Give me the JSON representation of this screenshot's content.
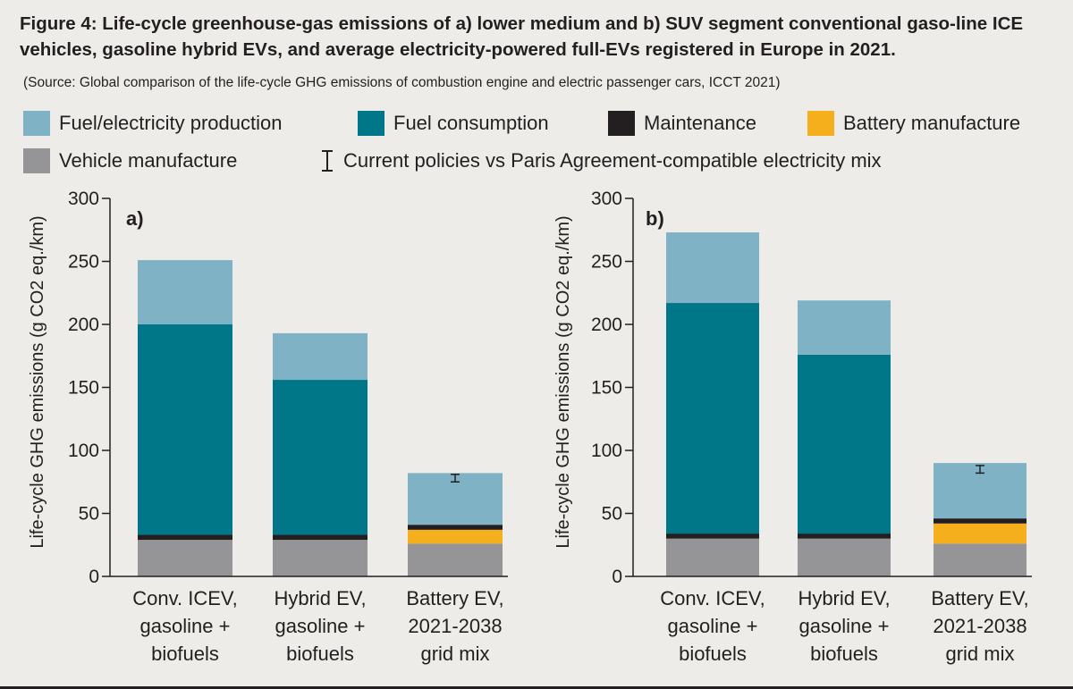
{
  "title": "Figure 4: Life-cycle greenhouse-gas emissions of a) lower medium and b) SUV segment conventional gaso-line ICE vehicles, gasoline hybrid EVs, and average electricity-powered full-EVs registered in Europe in 2021.",
  "source": "(Source: Global comparison of the life-cycle GHG emissions of combustion engine and electric passenger cars, ICCT 2021)",
  "legend": {
    "fuel_production": "Fuel/electricity production",
    "fuel_consumption": "Fuel consumption",
    "maintenance": "Maintenance",
    "battery": "Battery manufacture",
    "vehicle": "Vehicle manufacture",
    "error_bar": "Current policies vs Paris Agreement-compatible electricity mix"
  },
  "colors": {
    "fuel_production": "#7fb2c5",
    "fuel_consumption": "#007689",
    "maintenance": "#231f20",
    "battery": "#f5ae1c",
    "vehicle": "#959597",
    "background": "#eeece8"
  },
  "chart_data": [
    {
      "type": "bar",
      "stacked": true,
      "panel_label": "a)",
      "ylabel": "Life-cycle GHG emissions (g CO2 eq./km)",
      "ylim": [
        0,
        300
      ],
      "yticks": [
        "0",
        "50",
        "100",
        "150",
        "200",
        "250",
        "300"
      ],
      "categories": [
        [
          "Conv. ICEV,",
          "gasoline +",
          "biofuels"
        ],
        [
          "Hybrid EV,",
          "gasoline +",
          "biofuels"
        ],
        [
          "Battery EV,",
          "2021-2038",
          "grid mix"
        ]
      ],
      "series": [
        {
          "name": "Vehicle manufacture",
          "key": "vehicle",
          "values": [
            29,
            29,
            26
          ]
        },
        {
          "name": "Battery manufacture",
          "key": "battery",
          "values": [
            0,
            0,
            11
          ]
        },
        {
          "name": "Maintenance",
          "key": "maintenance",
          "values": [
            4,
            4,
            4
          ]
        },
        {
          "name": "Fuel consumption",
          "key": "fuel_consumption",
          "values": [
            167,
            123,
            0
          ]
        },
        {
          "name": "Fuel/electricity production",
          "key": "fuel_production",
          "values": [
            51,
            37,
            41
          ]
        }
      ],
      "error_bars": [
        null,
        null,
        {
          "center": 78,
          "low": 75,
          "high": 81
        }
      ]
    },
    {
      "type": "bar",
      "stacked": true,
      "panel_label": "b)",
      "ylabel": "Life-cycle GHG emissions (g CO2 eq./km)",
      "ylim": [
        0,
        300
      ],
      "yticks": [
        "0",
        "50",
        "100",
        "150",
        "200",
        "250",
        "300"
      ],
      "categories": [
        [
          "Conv. ICEV,",
          "gasoline +",
          "biofuels"
        ],
        [
          "Hybrid EV,",
          "gasoline +",
          "biofuels"
        ],
        [
          "Battery EV,",
          "2021-2038",
          "grid mix"
        ]
      ],
      "series": [
        {
          "name": "Vehicle manufacture",
          "key": "vehicle",
          "values": [
            30,
            30,
            26
          ]
        },
        {
          "name": "Battery manufacture",
          "key": "battery",
          "values": [
            0,
            0,
            16
          ]
        },
        {
          "name": "Maintenance",
          "key": "maintenance",
          "values": [
            4,
            4,
            4
          ]
        },
        {
          "name": "Fuel consumption",
          "key": "fuel_consumption",
          "values": [
            183,
            142,
            0
          ]
        },
        {
          "name": "Fuel/electricity production",
          "key": "fuel_production",
          "values": [
            56,
            43,
            44
          ]
        }
      ],
      "error_bars": [
        null,
        null,
        {
          "center": 85,
          "low": 82,
          "high": 88
        }
      ]
    }
  ]
}
